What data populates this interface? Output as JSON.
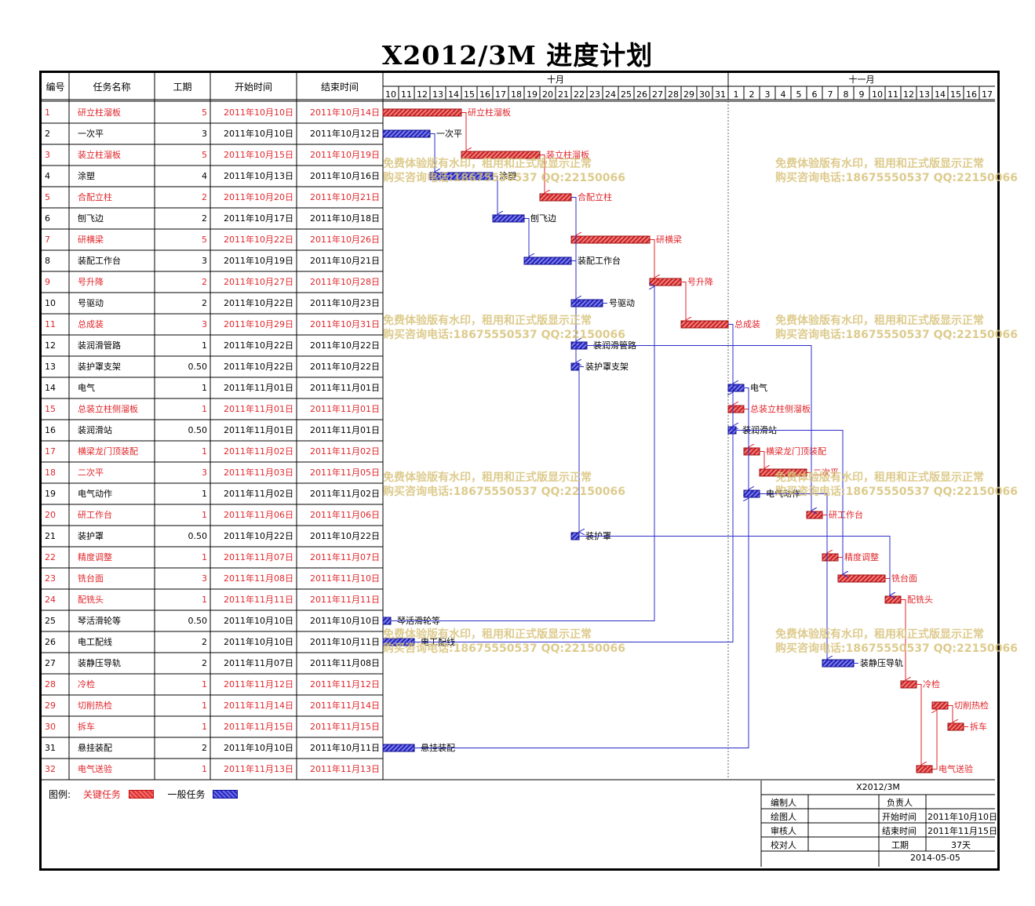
{
  "title": "X2012/3M 进度计划",
  "columns": {
    "id": "编号",
    "name": "任务名称",
    "duration": "工期",
    "start": "开始时间",
    "end": "结束时间"
  },
  "months": [
    "十月",
    "十一月"
  ],
  "days_oct": [
    "10",
    "11",
    "12",
    "13",
    "14",
    "15",
    "16",
    "17",
    "18",
    "19",
    "20",
    "21",
    "22",
    "23",
    "24",
    "25",
    "26",
    "27",
    "28",
    "29",
    "30",
    "31"
  ],
  "days_nov": [
    "1",
    "2",
    "3",
    "4",
    "5",
    "6",
    "7",
    "8",
    "9",
    "10",
    "11",
    "12",
    "13",
    "14",
    "15",
    "16",
    "17"
  ],
  "colors": {
    "critical": "#e0262b",
    "normal": "#2c2cc8",
    "critical_bar": "#d93a3a",
    "normal_bar": "#3a3ad0"
  },
  "chart_data": {
    "type": "gantt",
    "x_range": [
      "2011-10-10",
      "2011-11-17"
    ],
    "tasks": [
      {
        "id": "1",
        "name": "研立柱溜板",
        "duration": "5",
        "start": "2011年10月10日",
        "end": "2011年10月14日",
        "critical": true,
        "s": "2011-10-10",
        "e": "2011-10-14"
      },
      {
        "id": "2",
        "name": "一次平",
        "duration": "3",
        "start": "2011年10月10日",
        "end": "2011年10月12日",
        "critical": false,
        "s": "2011-10-10",
        "e": "2011-10-12"
      },
      {
        "id": "3",
        "name": "装立柱溜板",
        "duration": "5",
        "start": "2011年10月15日",
        "end": "2011年10月19日",
        "critical": true,
        "s": "2011-10-15",
        "e": "2011-10-19"
      },
      {
        "id": "4",
        "name": "涂塑",
        "duration": "4",
        "start": "2011年10月13日",
        "end": "2011年10月16日",
        "critical": false,
        "s": "2011-10-13",
        "e": "2011-10-16"
      },
      {
        "id": "5",
        "name": "合配立柱",
        "duration": "2",
        "start": "2011年10月20日",
        "end": "2011年10月21日",
        "critical": true,
        "s": "2011-10-20",
        "e": "2011-10-21"
      },
      {
        "id": "6",
        "name": "刨飞边",
        "duration": "2",
        "start": "2011年10月17日",
        "end": "2011年10月18日",
        "critical": false,
        "s": "2011-10-17",
        "e": "2011-10-18"
      },
      {
        "id": "7",
        "name": "研横梁",
        "duration": "5",
        "start": "2011年10月22日",
        "end": "2011年10月26日",
        "critical": true,
        "s": "2011-10-22",
        "e": "2011-10-26"
      },
      {
        "id": "8",
        "name": "装配工作台",
        "duration": "3",
        "start": "2011年10月19日",
        "end": "2011年10月21日",
        "critical": false,
        "s": "2011-10-19",
        "e": "2011-10-21"
      },
      {
        "id": "9",
        "name": "号升降",
        "duration": "2",
        "start": "2011年10月27日",
        "end": "2011年10月28日",
        "critical": true,
        "s": "2011-10-27",
        "e": "2011-10-28"
      },
      {
        "id": "10",
        "name": "号驱动",
        "duration": "2",
        "start": "2011年10月22日",
        "end": "2011年10月23日",
        "critical": false,
        "s": "2011-10-22",
        "e": "2011-10-23"
      },
      {
        "id": "11",
        "name": "总成装",
        "duration": "3",
        "start": "2011年10月29日",
        "end": "2011年10月31日",
        "critical": true,
        "s": "2011-10-29",
        "e": "2011-10-31"
      },
      {
        "id": "12",
        "name": "装润滑管路",
        "duration": "1",
        "start": "2011年10月22日",
        "end": "2011年10月22日",
        "critical": false,
        "s": "2011-10-22",
        "e": "2011-10-22"
      },
      {
        "id": "13",
        "name": "装护罩支架",
        "duration": "0.50",
        "start": "2011年10月22日",
        "end": "2011年10月22日",
        "critical": false,
        "s": "2011-10-22",
        "e": "2011-10-22"
      },
      {
        "id": "14",
        "name": "电气",
        "duration": "1",
        "start": "2011年11月01日",
        "end": "2011年11月01日",
        "critical": false,
        "s": "2011-11-01",
        "e": "2011-11-01"
      },
      {
        "id": "15",
        "name": "总装立柱侧溜板",
        "duration": "1",
        "start": "2011年11月01日",
        "end": "2011年11月01日",
        "critical": true,
        "s": "2011-11-01",
        "e": "2011-11-01"
      },
      {
        "id": "16",
        "name": "装润滑站",
        "duration": "0.50",
        "start": "2011年11月01日",
        "end": "2011年11月01日",
        "critical": false,
        "s": "2011-11-01",
        "e": "2011-11-01"
      },
      {
        "id": "17",
        "name": "横梁龙门顶装配",
        "duration": "1",
        "start": "2011年11月02日",
        "end": "2011年11月02日",
        "critical": true,
        "s": "2011-11-02",
        "e": "2011-11-02"
      },
      {
        "id": "18",
        "name": "二次平",
        "duration": "3",
        "start": "2011年11月03日",
        "end": "2011年11月05日",
        "critical": true,
        "s": "2011-11-03",
        "e": "2011-11-05"
      },
      {
        "id": "19",
        "name": "电气动作",
        "duration": "1",
        "start": "2011年11月02日",
        "end": "2011年11月02日",
        "critical": false,
        "s": "2011-11-02",
        "e": "2011-11-02"
      },
      {
        "id": "20",
        "name": "研工作台",
        "duration": "1",
        "start": "2011年11月06日",
        "end": "2011年11月06日",
        "critical": true,
        "s": "2011-11-06",
        "e": "2011-11-06"
      },
      {
        "id": "21",
        "name": "装护罩",
        "duration": "0.50",
        "start": "2011年10月22日",
        "end": "2011年10月22日",
        "critical": false,
        "s": "2011-10-22",
        "e": "2011-10-22"
      },
      {
        "id": "22",
        "name": "精度调整",
        "duration": "1",
        "start": "2011年11月07日",
        "end": "2011年11月07日",
        "critical": true,
        "s": "2011-11-07",
        "e": "2011-11-07"
      },
      {
        "id": "23",
        "name": "铣台面",
        "duration": "3",
        "start": "2011年11月08日",
        "end": "2011年11月10日",
        "critical": true,
        "s": "2011-11-08",
        "e": "2011-11-10"
      },
      {
        "id": "24",
        "name": "配铣头",
        "duration": "1",
        "start": "2011年11月11日",
        "end": "2011年11月11日",
        "critical": true,
        "s": "2011-11-11",
        "e": "2011-11-11"
      },
      {
        "id": "25",
        "name": "琴活滑轮等",
        "duration": "0.50",
        "start": "2011年10月10日",
        "end": "2011年10月10日",
        "critical": false,
        "s": "2011-10-10",
        "e": "2011-10-10"
      },
      {
        "id": "26",
        "name": "电工配线",
        "duration": "2",
        "start": "2011年10月10日",
        "end": "2011年10月11日",
        "critical": false,
        "s": "2011-10-10",
        "e": "2011-10-11"
      },
      {
        "id": "27",
        "name": "装静压导轨",
        "duration": "2",
        "start": "2011年11月07日",
        "end": "2011年11月08日",
        "critical": false,
        "s": "2011-11-07",
        "e": "2011-11-08"
      },
      {
        "id": "28",
        "name": "冷检",
        "duration": "1",
        "start": "2011年11月12日",
        "end": "2011年11月12日",
        "critical": true,
        "s": "2011-11-12",
        "e": "2011-11-12"
      },
      {
        "id": "29",
        "name": "切削热检",
        "duration": "1",
        "start": "2011年11月14日",
        "end": "2011年11月14日",
        "critical": true,
        "s": "2011-11-14",
        "e": "2011-11-14"
      },
      {
        "id": "30",
        "name": "拆车",
        "duration": "1",
        "start": "2011年11月15日",
        "end": "2011年11月15日",
        "critical": true,
        "s": "2011-11-15",
        "e": "2011-11-15"
      },
      {
        "id": "31",
        "name": "悬挂装配",
        "duration": "2",
        "start": "2011年10月10日",
        "end": "2011年10月11日",
        "critical": false,
        "s": "2011-10-10",
        "e": "2011-10-11"
      },
      {
        "id": "32",
        "name": "电气送验",
        "duration": "1",
        "start": "2011年11月13日",
        "end": "2011年11月13日",
        "critical": true,
        "s": "2011-11-13",
        "e": "2011-11-13"
      }
    ],
    "links": [
      [
        1,
        3
      ],
      [
        2,
        4
      ],
      [
        4,
        6
      ],
      [
        6,
        8
      ],
      [
        3,
        5
      ],
      [
        5,
        7
      ],
      [
        5,
        10
      ],
      [
        5,
        12
      ],
      [
        5,
        13
      ],
      [
        7,
        9
      ],
      [
        9,
        11
      ],
      [
        11,
        14
      ],
      [
        11,
        15
      ],
      [
        11,
        16
      ],
      [
        15,
        17
      ],
      [
        17,
        18
      ],
      [
        14,
        19
      ],
      [
        18,
        20
      ],
      [
        13,
        21
      ],
      [
        20,
        22
      ],
      [
        22,
        23
      ],
      [
        23,
        24
      ],
      [
        24,
        28
      ],
      [
        28,
        32
      ],
      [
        32,
        29
      ],
      [
        29,
        30
      ],
      [
        25,
        9
      ],
      [
        26,
        14
      ],
      [
        31,
        19
      ],
      [
        12,
        20
      ],
      [
        16,
        23
      ],
      [
        21,
        24
      ],
      [
        19,
        27
      ]
    ]
  },
  "watermark": {
    "line1": "免费体验版有水印，租用和正式版显示正常",
    "line2": "购买咨询电话:18675550537 QQ:22150066"
  },
  "legend": {
    "label": "图例:",
    "critical": "关键任务",
    "normal": "一般任务"
  },
  "title_block": {
    "project": "X2012/3M",
    "compiler_label": "编制人",
    "owner_label": "负责人",
    "drawer_label": "绘图人",
    "start_label": "开始时间",
    "start_value": "2011年10月10日",
    "reviewer_label": "审核人",
    "end_label": "结束时间",
    "end_value": "2011年11月15日",
    "checker_label": "校对人",
    "duration_label": "工期",
    "duration_value": "37天",
    "date": "2014-05-05"
  }
}
